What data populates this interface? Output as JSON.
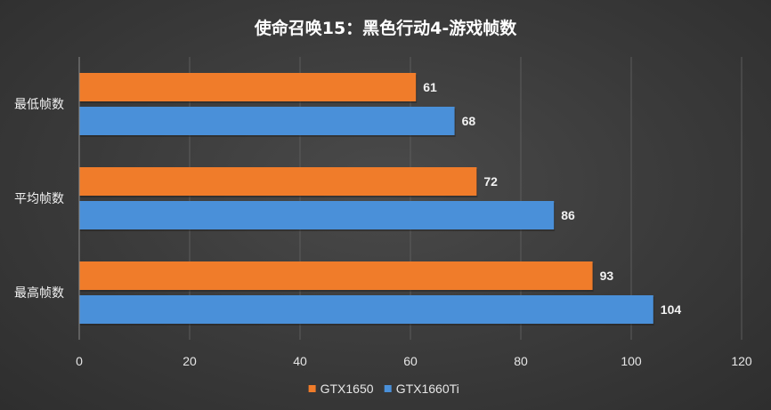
{
  "chart_data": {
    "type": "bar",
    "orientation": "horizontal",
    "title": "使命召唤15：黑色行动4-游戏帧数",
    "categories": [
      "最低帧数",
      "平均帧数",
      "最高帧数"
    ],
    "series": [
      {
        "name": "GTX1650",
        "values": [
          61,
          72,
          93
        ],
        "color": "#f07c2a"
      },
      {
        "name": "GTX1660Ti",
        "values": [
          68,
          86,
          104
        ],
        "color": "#4a90d9"
      }
    ],
    "xlim": [
      0,
      120
    ],
    "xticks": [
      0,
      20,
      40,
      60,
      80,
      100,
      120
    ],
    "xlabel": "",
    "ylabel": "",
    "grid": true,
    "legend_position": "bottom",
    "data_labels": true,
    "background": "#3a3a3a"
  }
}
